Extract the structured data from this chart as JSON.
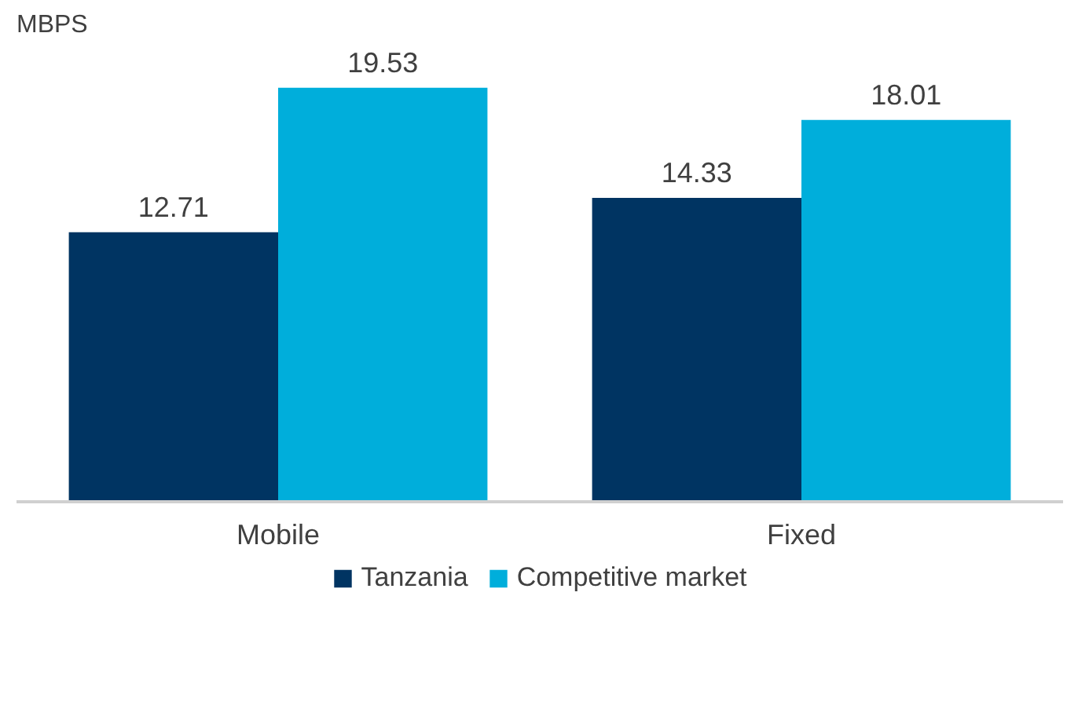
{
  "chart_data": {
    "type": "bar",
    "ylabel": "MBPS",
    "categories": [
      "Mobile",
      "Fixed"
    ],
    "series": [
      {
        "name": "Tanzania",
        "color": "#003462",
        "values": [
          12.71,
          14.33
        ]
      },
      {
        "name": "Competitive market",
        "color": "#00aedb",
        "values": [
          19.53,
          18.01
        ]
      }
    ],
    "data_labels": true,
    "legend": "bottom",
    "grid": false,
    "tick_labels": "x"
  }
}
